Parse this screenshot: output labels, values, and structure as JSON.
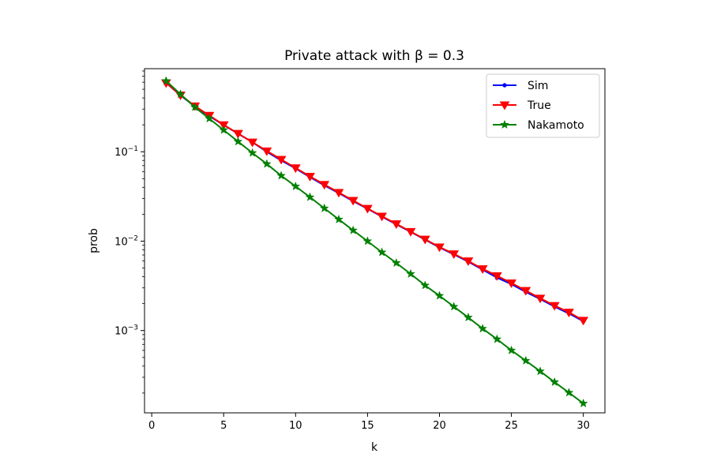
{
  "chart_data": {
    "type": "line",
    "title": "Private attack with β = 0.3",
    "xlabel": "k",
    "ylabel": "prob",
    "yscale": "log",
    "xlim": [
      -0.5,
      31.5
    ],
    "ylim": [
      0.00012,
      0.85
    ],
    "grid": false,
    "legend_position": "top-right",
    "x_ticks": [
      0,
      5,
      10,
      15,
      20,
      25,
      30
    ],
    "y_ticks": [
      {
        "value": 0.1,
        "base": "10",
        "exp": "−1"
      },
      {
        "value": 0.01,
        "base": "10",
        "exp": "−2"
      },
      {
        "value": 0.001,
        "base": "10",
        "exp": "−3"
      }
    ],
    "x": [
      1,
      2,
      3,
      4,
      5,
      6,
      7,
      8,
      9,
      10,
      11,
      12,
      13,
      14,
      15,
      16,
      17,
      18,
      19,
      20,
      21,
      22,
      23,
      24,
      25,
      26,
      27,
      28,
      29,
      30
    ],
    "series": [
      {
        "name": "Sim",
        "color": "#0000ff",
        "marker": "point",
        "values": [
          0.59,
          0.427,
          0.322,
          0.251,
          0.199,
          0.159,
          0.128,
          0.1,
          0.08,
          0.065,
          0.052,
          0.042,
          0.0345,
          0.028,
          0.023,
          0.0188,
          0.0154,
          0.0127,
          0.0104,
          0.0085,
          0.0071,
          0.0059,
          0.0048,
          0.0039,
          0.0033,
          0.0027,
          0.00225,
          0.00185,
          0.00155,
          0.00127
        ]
      },
      {
        "name": "True",
        "color": "#ff0000",
        "marker": "triangle-down",
        "values": [
          0.59,
          0.43,
          0.325,
          0.255,
          0.2,
          0.16,
          0.128,
          0.102,
          0.082,
          0.066,
          0.053,
          0.043,
          0.035,
          0.0285,
          0.0232,
          0.019,
          0.0156,
          0.0128,
          0.0105,
          0.0086,
          0.0072,
          0.006,
          0.0049,
          0.0041,
          0.0034,
          0.0028,
          0.0023,
          0.0019,
          0.0016,
          0.0013
        ]
      },
      {
        "name": "Nakamoto",
        "color": "#008000",
        "marker": "star",
        "values": [
          0.62,
          0.44,
          0.315,
          0.235,
          0.175,
          0.13,
          0.097,
          0.073,
          0.054,
          0.041,
          0.031,
          0.0233,
          0.0175,
          0.0132,
          0.01,
          0.0075,
          0.0057,
          0.0043,
          0.0032,
          0.00245,
          0.00185,
          0.0014,
          0.00105,
          0.0008,
          0.0006,
          0.00046,
          0.00035,
          0.000265,
          0.000202,
          0.000153
        ]
      }
    ]
  }
}
